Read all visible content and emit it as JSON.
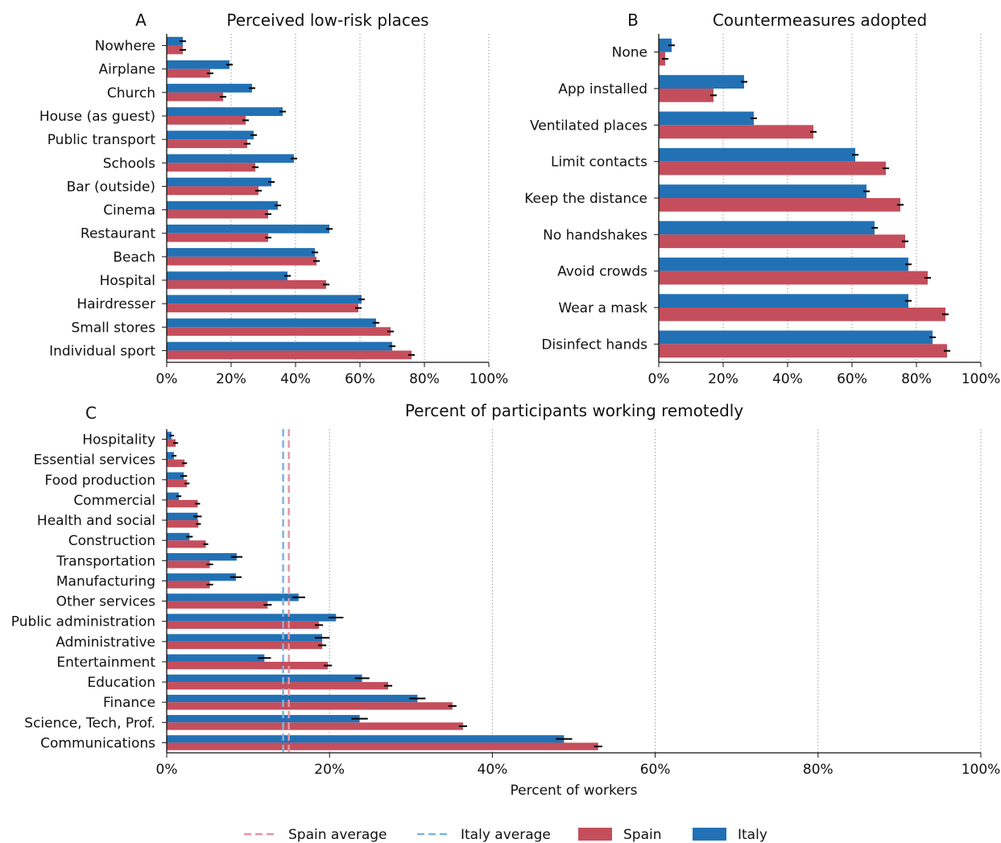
{
  "colors": {
    "spain": "#c44e5c",
    "italy": "#2271b5",
    "spain_avg": "#e596a0",
    "italy_avg": "#7fb2dc"
  },
  "legend": {
    "spain_average": "Spain average",
    "italy_average": "Italy average",
    "spain": "Spain",
    "italy": "Italy"
  },
  "chart_data": [
    {
      "panel": "A",
      "type": "bar",
      "orientation": "horizontal",
      "title": "Perceived low-risk places",
      "xlabel": "",
      "xlim": [
        0,
        100
      ],
      "x_ticks": [
        "0%",
        "20%",
        "40%",
        "60%",
        "80%",
        "100%"
      ],
      "grid": "vertical dotted",
      "categories": [
        "Nowhere",
        "Airplane",
        "Church",
        "House (as guest)",
        "Public transport",
        "Schools",
        "Bar (outside)",
        "Cinema",
        "Restaurant",
        "Beach",
        "Hospital",
        "Hairdresser",
        "Small stores",
        "Individual sport"
      ],
      "series": [
        {
          "name": "Italy",
          "values": [
            5,
            19.5,
            26.5,
            36,
            27,
            39.5,
            32.5,
            34.5,
            50.5,
            46,
            37.5,
            60.5,
            65,
            70
          ],
          "errors": [
            1.0,
            1.0,
            1.0,
            1.0,
            1.0,
            1.0,
            1.0,
            1.0,
            1.0,
            1.0,
            1.0,
            1.0,
            1.0,
            1.0
          ]
        },
        {
          "name": "Spain",
          "values": [
            5,
            13.5,
            17.5,
            24.5,
            25,
            27.5,
            28.5,
            31.5,
            31.5,
            46.5,
            49.5,
            59.5,
            69.5,
            76
          ],
          "errors": [
            1.0,
            1.0,
            1.0,
            1.0,
            1.0,
            1.0,
            1.0,
            1.0,
            1.0,
            1.0,
            1.0,
            1.0,
            1.0,
            1.0
          ]
        }
      ]
    },
    {
      "panel": "B",
      "type": "bar",
      "orientation": "horizontal",
      "title": "Countermeasures adopted",
      "xlabel": "",
      "xlim": [
        0,
        100
      ],
      "x_ticks": [
        "0%",
        "20%",
        "40%",
        "60%",
        "80%",
        "100%"
      ],
      "grid": "vertical dotted",
      "categories": [
        "None",
        "App installed",
        "Ventilated places",
        "Limit contacts",
        "Keep the distance",
        "No handshakes",
        "Avoid crowds",
        "Wear a mask",
        "Disinfect hands"
      ],
      "series": [
        {
          "name": "Italy",
          "values": [
            4,
            26.5,
            29.5,
            61,
            64.5,
            67,
            77.5,
            77.5,
            85
          ],
          "errors": [
            1.0,
            1.0,
            1.0,
            1.0,
            1.0,
            1.0,
            1.0,
            1.0,
            1.0
          ]
        },
        {
          "name": "Spain",
          "values": [
            2,
            17,
            48,
            70.5,
            75,
            76.5,
            83.5,
            89,
            89.5
          ],
          "errors": [
            1.0,
            1.0,
            1.0,
            1.0,
            1.0,
            1.0,
            1.0,
            1.0,
            1.0
          ]
        }
      ]
    },
    {
      "panel": "C",
      "type": "bar",
      "orientation": "horizontal",
      "title": "Percent of participants working remotedly",
      "xlabel": "Percent of workers",
      "xlim": [
        0,
        100
      ],
      "x_ticks": [
        "0%",
        "20%",
        "40%",
        "60%",
        "80%",
        "100%"
      ],
      "grid": "vertical dotted",
      "reference_lines": [
        {
          "name": "Italy average",
          "value": 14.3
        },
        {
          "name": "Spain average",
          "value": 15.0
        }
      ],
      "categories": [
        "Hospitality",
        "Essential services",
        "Food production",
        "Commercial",
        "Health and social",
        "Construction",
        "Transportation",
        "Manufacturing",
        "Other services",
        "Public administration",
        "Administrative",
        "Entertainment",
        "Education",
        "Finance",
        "Science,  Tech, Prof.",
        "Communications"
      ],
      "series": [
        {
          "name": "Italy",
          "values": [
            0.6,
            0.9,
            2.1,
            1.5,
            3.8,
            2.8,
            8.6,
            8.5,
            16.2,
            20.8,
            19.1,
            12,
            24,
            30.8,
            23.7,
            48.8
          ],
          "errors": [
            0.3,
            0.3,
            0.4,
            0.3,
            0.5,
            0.4,
            0.7,
            0.7,
            0.8,
            0.9,
            0.9,
            0.8,
            0.9,
            1.0,
            1.0,
            1.0
          ]
        },
        {
          "name": "Spain",
          "values": [
            1.1,
            2.2,
            2.5,
            3.8,
            3.9,
            4.8,
            5.3,
            5.3,
            12.4,
            18.7,
            19.1,
            19.8,
            27.2,
            35.1,
            36.4,
            53
          ],
          "errors": [
            0.3,
            0.3,
            0.3,
            0.3,
            0.3,
            0.3,
            0.4,
            0.4,
            0.5,
            0.5,
            0.5,
            0.5,
            0.5,
            0.5,
            0.5,
            0.5
          ]
        }
      ]
    }
  ]
}
